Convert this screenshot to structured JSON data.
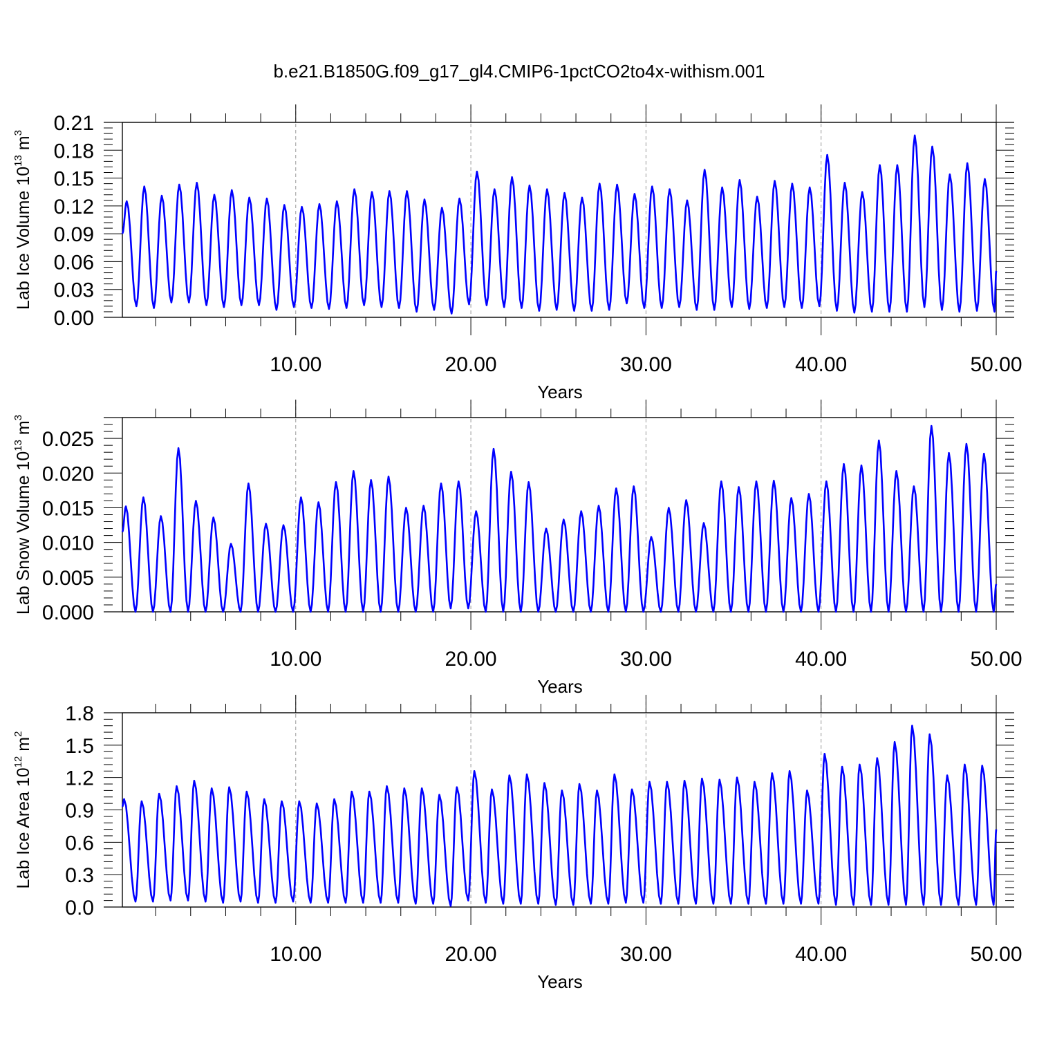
{
  "title": "b.e21.B1850G.f09_g17_gl4.CMIP6-1pctCO2to4x-withism.001",
  "colors": {
    "series": "#0000ff",
    "axis": "#000000",
    "grid": "#999999"
  },
  "chart_data": [
    {
      "type": "line",
      "ylabel": "Lab Ice Volume 10",
      "ylabel_exp": "13",
      "ylabel_unit": "m",
      "ylabel_unit_exp": "3",
      "xlabel": "Years",
      "xlim": [
        0.1,
        50.0
      ],
      "ylim": [
        0.0,
        0.21
      ],
      "xticks": [
        10,
        20,
        30,
        40,
        50
      ],
      "xtick_labels": [
        "10.00",
        "20.00",
        "30.00",
        "40.00",
        "50.00"
      ],
      "yticks": [
        0,
        0.03,
        0.06,
        0.09,
        0.12,
        0.15,
        0.18,
        0.21
      ],
      "ytick_labels": [
        "0.00",
        "0.03",
        "0.06",
        "0.09",
        "0.12",
        "0.15",
        "0.18",
        "0.21"
      ],
      "grid": "vertical-dashed",
      "series": [
        {
          "peak_years": [
            0.35,
            1.35,
            2.35,
            3.35,
            4.35,
            5.35,
            6.35,
            7.35,
            8.35,
            9.35,
            10.35,
            11.35,
            12.35,
            13.35,
            14.35,
            15.35,
            16.35,
            17.35,
            18.35,
            19.35,
            20.35,
            21.35,
            22.35,
            23.35,
            24.35,
            25.35,
            26.35,
            27.35,
            28.35,
            29.35,
            30.35,
            31.35,
            32.35,
            33.35,
            34.35,
            35.35,
            36.35,
            37.35,
            38.35,
            39.35,
            40.35,
            41.35,
            42.35,
            43.35,
            44.35,
            45.35,
            46.35,
            47.35,
            48.35,
            49.35
          ],
          "peaks": [
            0.125,
            0.141,
            0.131,
            0.143,
            0.145,
            0.132,
            0.137,
            0.129,
            0.128,
            0.121,
            0.119,
            0.122,
            0.125,
            0.138,
            0.135,
            0.136,
            0.136,
            0.127,
            0.118,
            0.128,
            0.157,
            0.138,
            0.151,
            0.142,
            0.138,
            0.134,
            0.129,
            0.144,
            0.143,
            0.133,
            0.141,
            0.138,
            0.126,
            0.159,
            0.14,
            0.148,
            0.13,
            0.147,
            0.144,
            0.14,
            0.175,
            0.145,
            0.135,
            0.164,
            0.164,
            0.196,
            0.184,
            0.154,
            0.166,
            0.149
          ],
          "trough_years": [
            0.9,
            1.9,
            2.9,
            3.9,
            4.9,
            5.9,
            6.9,
            7.9,
            8.9,
            9.9,
            10.9,
            11.9,
            12.9,
            13.9,
            14.9,
            15.9,
            16.9,
            17.9,
            18.9,
            19.9,
            20.9,
            21.9,
            22.9,
            23.9,
            24.9,
            25.9,
            26.9,
            27.9,
            28.9,
            29.9,
            30.9,
            31.9,
            32.9,
            33.9,
            34.9,
            35.9,
            36.9,
            37.9,
            38.9,
            39.9,
            40.9,
            41.9,
            42.9,
            43.9,
            44.9,
            45.9,
            46.9,
            47.9,
            48.9,
            49.9
          ],
          "troughs": [
            0.012,
            0.01,
            0.016,
            0.016,
            0.013,
            0.011,
            0.013,
            0.013,
            0.008,
            0.011,
            0.01,
            0.009,
            0.01,
            0.013,
            0.011,
            0.01,
            0.006,
            0.008,
            0.004,
            0.014,
            0.013,
            0.011,
            0.01,
            0.007,
            0.008,
            0.007,
            0.007,
            0.008,
            0.015,
            0.01,
            0.01,
            0.011,
            0.008,
            0.008,
            0.011,
            0.009,
            0.01,
            0.011,
            0.01,
            0.012,
            0.007,
            0.005,
            0.006,
            0.006,
            0.006,
            0.011,
            0.008,
            0.006,
            0.007,
            0.006
          ],
          "start": 0.09,
          "end": 0.05
        }
      ]
    },
    {
      "type": "line",
      "ylabel": "Lab Snow Volume 10",
      "ylabel_exp": "13",
      "ylabel_unit": "m",
      "ylabel_unit_exp": "3",
      "xlabel": "Years",
      "xlim": [
        0.1,
        50.0
      ],
      "ylim": [
        0.0,
        0.028
      ],
      "xticks": [
        10,
        20,
        30,
        40,
        50
      ],
      "xtick_labels": [
        "10.00",
        "20.00",
        "30.00",
        "40.00",
        "50.00"
      ],
      "yticks": [
        0,
        0.005,
        0.01,
        0.015,
        0.02,
        0.025
      ],
      "ytick_labels": [
        "0.000",
        "0.005",
        "0.010",
        "0.015",
        "0.020",
        "0.025"
      ],
      "grid": "vertical-dashed",
      "series": [
        {
          "peak_years": [
            0.3,
            1.3,
            2.3,
            3.3,
            4.3,
            5.3,
            6.3,
            7.3,
            8.3,
            9.3,
            10.3,
            11.3,
            12.3,
            13.3,
            14.3,
            15.3,
            16.3,
            17.3,
            18.3,
            19.3,
            20.3,
            21.3,
            22.3,
            23.3,
            24.3,
            25.3,
            26.3,
            27.3,
            28.3,
            29.3,
            30.3,
            31.3,
            32.3,
            33.3,
            34.3,
            35.3,
            36.3,
            37.3,
            38.3,
            39.3,
            40.3,
            41.3,
            42.3,
            43.3,
            44.3,
            45.3,
            46.3,
            47.3,
            48.3,
            49.3
          ],
          "peaks": [
            0.0152,
            0.0165,
            0.0138,
            0.0236,
            0.016,
            0.0136,
            0.0098,
            0.0185,
            0.0127,
            0.0125,
            0.0165,
            0.0158,
            0.0187,
            0.0203,
            0.019,
            0.0195,
            0.015,
            0.0153,
            0.0185,
            0.0188,
            0.0145,
            0.0235,
            0.0202,
            0.0187,
            0.012,
            0.0133,
            0.0145,
            0.0153,
            0.0178,
            0.0181,
            0.0108,
            0.015,
            0.0161,
            0.0128,
            0.0188,
            0.018,
            0.0188,
            0.0189,
            0.0164,
            0.017,
            0.0188,
            0.0213,
            0.0211,
            0.0247,
            0.0203,
            0.0181,
            0.0268,
            0.0229,
            0.0242,
            0.0228
          ],
          "trough_years": [
            0.85,
            1.85,
            2.85,
            3.85,
            4.85,
            5.85,
            6.85,
            7.85,
            8.85,
            9.85,
            10.85,
            11.85,
            12.85,
            13.85,
            14.85,
            15.85,
            16.85,
            17.85,
            18.85,
            19.85,
            20.85,
            21.85,
            22.85,
            23.85,
            24.85,
            25.85,
            26.85,
            27.85,
            28.85,
            29.85,
            30.85,
            31.85,
            32.85,
            33.85,
            34.85,
            35.85,
            36.85,
            37.85,
            38.85,
            39.85,
            40.85,
            41.85,
            42.85,
            43.85,
            44.85,
            45.85,
            46.85,
            47.85,
            48.85,
            49.85
          ],
          "troughs": [
            0.0,
            0.0,
            0.0,
            0.0,
            0.0,
            0.0,
            0.0,
            0.0,
            0.0,
            0.0,
            0.0,
            0.0,
            0.0,
            0.0,
            0.0,
            0.0,
            0.0,
            0.0,
            0.0005,
            0.0005,
            0.0,
            0.0,
            0.0,
            0.0,
            0.0,
            0.0,
            0.0,
            0.0,
            0.0,
            0.0,
            0.0,
            0.0,
            0.0,
            0.0,
            0.0,
            0.0,
            0.0,
            0.0,
            0.0,
            0.0,
            0.0,
            0.0,
            0.0,
            0.0,
            0.0,
            0.0,
            0.0,
            0.0,
            0.0,
            0.0
          ],
          "start": 0.0115,
          "end": 0.004
        }
      ]
    },
    {
      "type": "line",
      "ylabel": "Lab Ice Area 10",
      "ylabel_exp": "12",
      "ylabel_unit": "m",
      "ylabel_unit_exp": "2",
      "xlabel": "Years",
      "xlim": [
        0.1,
        50.0
      ],
      "ylim": [
        0.0,
        1.8
      ],
      "xticks": [
        10,
        20,
        30,
        40,
        50
      ],
      "xtick_labels": [
        "10.00",
        "20.00",
        "30.00",
        "40.00",
        "50.00"
      ],
      "yticks": [
        0,
        0.3,
        0.6,
        0.9,
        1.2,
        1.5,
        1.8
      ],
      "ytick_labels": [
        "0.0",
        "0.3",
        "0.6",
        "0.9",
        "1.2",
        "1.5",
        "1.8"
      ],
      "grid": "vertical-dashed",
      "series": [
        {
          "peak_years": [
            0.2,
            1.2,
            2.2,
            3.2,
            4.2,
            5.2,
            6.2,
            7.2,
            8.2,
            9.2,
            10.2,
            11.2,
            12.2,
            13.2,
            14.2,
            15.2,
            16.2,
            17.2,
            18.2,
            19.2,
            20.2,
            21.2,
            22.2,
            23.2,
            24.2,
            25.2,
            26.2,
            27.2,
            28.2,
            29.2,
            30.2,
            31.2,
            32.2,
            33.2,
            34.2,
            35.2,
            36.2,
            37.2,
            38.2,
            39.2,
            40.2,
            41.2,
            42.2,
            43.2,
            44.2,
            45.2,
            46.2,
            47.2,
            48.2,
            49.2
          ],
          "peaks": [
            1.0,
            0.98,
            1.05,
            1.12,
            1.17,
            1.1,
            1.11,
            1.07,
            1.0,
            0.98,
            0.98,
            0.96,
            1.0,
            1.07,
            1.07,
            1.12,
            1.1,
            1.1,
            1.04,
            1.11,
            1.26,
            1.09,
            1.22,
            1.23,
            1.15,
            1.08,
            1.14,
            1.08,
            1.23,
            1.09,
            1.16,
            1.16,
            1.17,
            1.19,
            1.18,
            1.2,
            1.16,
            1.24,
            1.26,
            1.08,
            1.42,
            1.3,
            1.32,
            1.38,
            1.53,
            1.68,
            1.6,
            1.22,
            1.32,
            1.31
          ],
          "trough_years": [
            0.85,
            1.85,
            2.85,
            3.85,
            4.85,
            5.85,
            6.85,
            7.85,
            8.85,
            9.85,
            10.85,
            11.85,
            12.85,
            13.85,
            14.85,
            15.85,
            16.85,
            17.85,
            18.85,
            19.85,
            20.85,
            21.85,
            22.85,
            23.85,
            24.85,
            25.85,
            26.85,
            27.85,
            28.85,
            29.85,
            30.85,
            31.85,
            32.85,
            33.85,
            34.85,
            35.85,
            36.85,
            37.85,
            38.85,
            39.85,
            40.85,
            41.85,
            42.85,
            43.85,
            44.85,
            45.85,
            46.85,
            47.85,
            48.85,
            49.85
          ],
          "troughs": [
            0.05,
            0.05,
            0.06,
            0.06,
            0.05,
            0.04,
            0.05,
            0.04,
            0.04,
            0.05,
            0.04,
            0.04,
            0.04,
            0.04,
            0.04,
            0.04,
            0.03,
            0.03,
            0.01,
            0.06,
            0.04,
            0.03,
            0.03,
            0.03,
            0.02,
            0.02,
            0.03,
            0.03,
            0.04,
            0.04,
            0.03,
            0.03,
            0.03,
            0.03,
            0.03,
            0.03,
            0.03,
            0.03,
            0.03,
            0.03,
            0.02,
            0.02,
            0.02,
            0.02,
            0.02,
            0.02,
            0.02,
            0.02,
            0.02,
            0.02
          ],
          "start": 0.93,
          "end": 0.72
        }
      ]
    }
  ]
}
